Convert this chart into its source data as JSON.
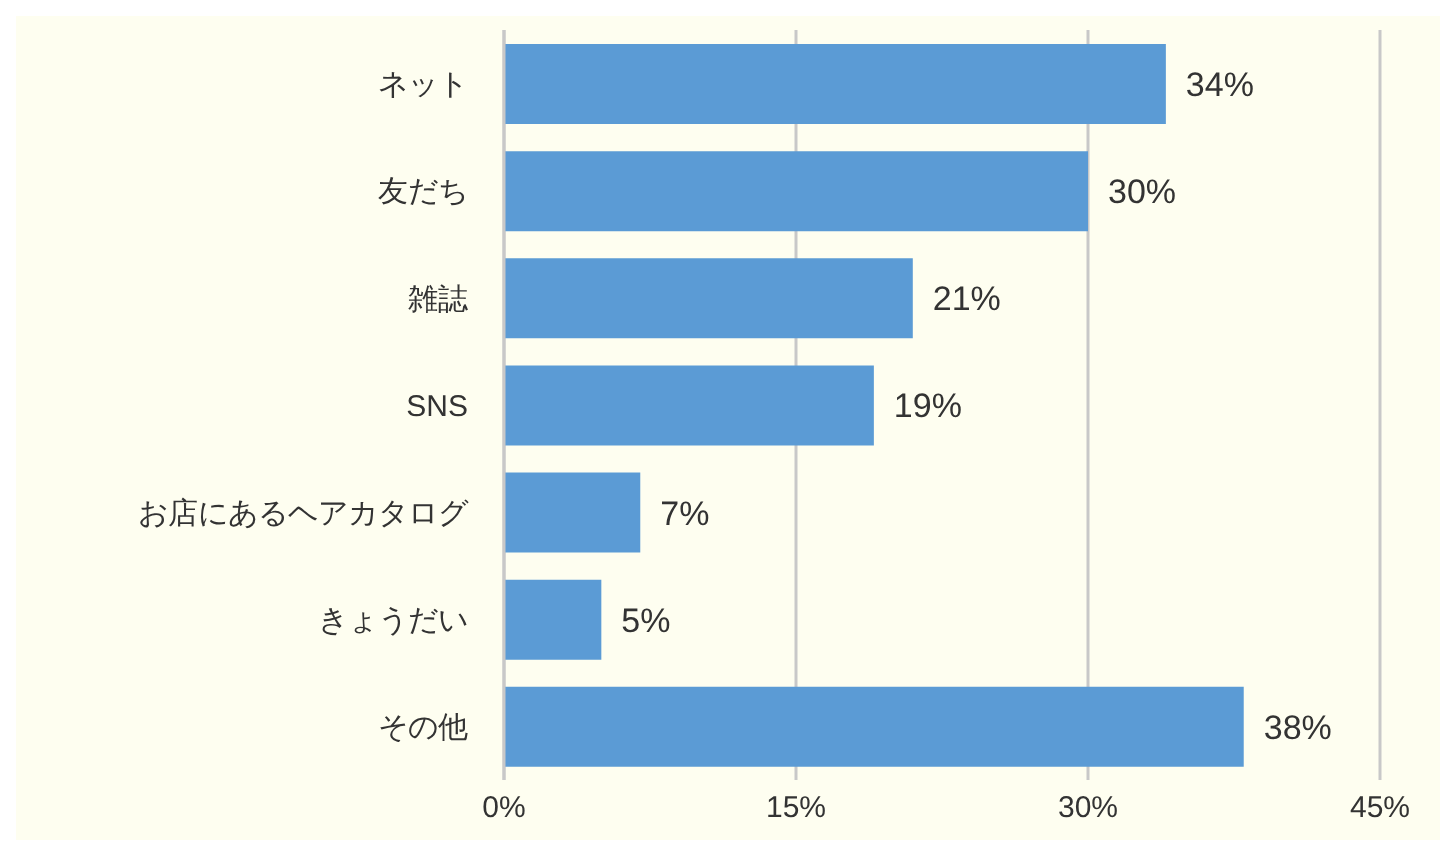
{
  "chart_data": {
    "type": "bar",
    "orientation": "horizontal",
    "categories": [
      "ネット",
      "友だち",
      "雑誌",
      "SNS",
      "お店にあるヘアカタログ",
      "きょうだい",
      "その他"
    ],
    "values": [
      34,
      30,
      21,
      19,
      7,
      5,
      38
    ],
    "value_labels": [
      "34%",
      "30%",
      "21%",
      "19%",
      "7%",
      "5%",
      "38%"
    ],
    "color": "#5b9bd5",
    "xlim": [
      0,
      45
    ],
    "xticks": [
      {
        "value": 0,
        "label": "0%"
      },
      {
        "value": 15,
        "label": "15%"
      },
      {
        "value": 30,
        "label": "30%"
      },
      {
        "value": 45,
        "label": "45%"
      }
    ],
    "grid": "x"
  }
}
